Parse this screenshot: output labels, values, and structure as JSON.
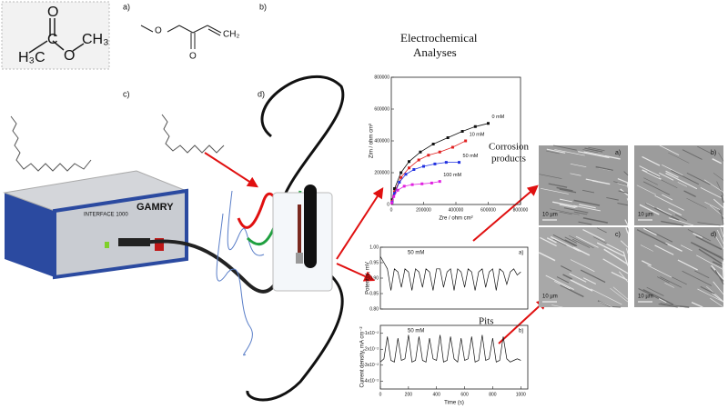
{
  "panel_labels": [
    "a)",
    "b)",
    "c)",
    "d)"
  ],
  "molecules": {
    "acetate": {
      "h3c": "H₃C",
      "c": "C",
      "o_top": "O",
      "o_mid": "O",
      "ch3": "CH₃"
    },
    "acrylate": {
      "o_left": "O",
      "o_bottom": "O",
      "ch2": "CH₂"
    }
  },
  "title": [
    "Electrochemical",
    "Analyses"
  ],
  "instrument": {
    "model": "INTERFACE 1000",
    "brand": "GAMRY"
  },
  "nyquist": {
    "type": "line",
    "xlabel": "Zre / ohm cm²",
    "ylabel": "Zim / ohm cm²",
    "xlim": [
      0,
      800000
    ],
    "xticks": [
      0,
      200000,
      400000,
      600000,
      800000
    ],
    "ylim": [
      0,
      800000
    ],
    "yticks": [
      0,
      200000,
      400000,
      600000,
      800000
    ],
    "series": [
      {
        "name": "0 mM",
        "color": "#111111",
        "x": [
          5000,
          20000,
          60000,
          110000,
          180000,
          260000,
          350000,
          440000,
          520000,
          600000
        ],
        "values": [
          30000,
          100000,
          200000,
          270000,
          330000,
          380000,
          420000,
          460000,
          490000,
          510000
        ]
      },
      {
        "name": "10 mM",
        "color": "#e02020",
        "x": [
          5000,
          20000,
          60000,
          110000,
          170000,
          230000,
          300000,
          380000,
          460000
        ],
        "values": [
          20000,
          80000,
          170000,
          230000,
          280000,
          310000,
          330000,
          360000,
          400000
        ]
      },
      {
        "name": "50 mM",
        "color": "#2030e0",
        "x": [
          5000,
          20000,
          50000,
          90000,
          140000,
          200000,
          270000,
          340000,
          420000
        ],
        "values": [
          15000,
          70000,
          140000,
          190000,
          220000,
          240000,
          255000,
          265000,
          265000
        ]
      },
      {
        "name": "100 mM",
        "color": "#e020e0",
        "x": [
          3000,
          15000,
          40000,
          80000,
          130000,
          190000,
          250000,
          300000
        ],
        "values": [
          10000,
          50000,
          90000,
          115000,
          125000,
          130000,
          135000,
          145000
        ]
      }
    ]
  },
  "potential_noise": {
    "type": "line",
    "ylabel": "Potential, mV",
    "panel": "a)",
    "label": "50 mM",
    "xlim": [
      0,
      1050
    ],
    "ylim": [
      0.8,
      1.0
    ],
    "yticks": [
      {
        "value": 0.8,
        "label": "0.80"
      },
      0.85,
      {
        "value": 0.9,
        "label": "0.90"
      },
      0.95,
      {
        "value": 1.0,
        "label": "1.00"
      }
    ],
    "x": [
      0,
      25,
      50,
      75,
      100,
      125,
      150,
      175,
      200,
      225,
      250,
      275,
      300,
      325,
      350,
      375,
      400,
      425,
      450,
      475,
      500,
      525,
      550,
      575,
      600,
      625,
      650,
      675,
      700,
      725,
      750,
      775,
      800,
      825,
      850,
      875,
      900,
      925,
      950,
      975,
      1000
    ],
    "values": [
      0.97,
      0.95,
      0.93,
      0.86,
      0.93,
      0.92,
      0.87,
      0.93,
      0.92,
      0.86,
      0.93,
      0.92,
      0.87,
      0.93,
      0.92,
      0.86,
      0.93,
      0.93,
      0.87,
      0.92,
      0.93,
      0.86,
      0.93,
      0.92,
      0.87,
      0.93,
      0.92,
      0.86,
      0.92,
      0.93,
      0.87,
      0.92,
      0.93,
      0.86,
      0.93,
      0.92,
      0.88,
      0.92,
      0.93,
      0.91,
      0.92
    ]
  },
  "current_noise": {
    "type": "line",
    "xlabel": "Time (s)",
    "ylabel": "Current density, mA cm⁻²",
    "panel": "b)",
    "label": "50 mM",
    "xlim": [
      0,
      1050
    ],
    "xticks": [
      0,
      200,
      400,
      600,
      800,
      1000
    ],
    "ylim": [
      -0.045,
      -0.005
    ],
    "yticks": [
      {
        "value": -0.04,
        "label": "-4x10⁻²"
      },
      {
        "value": -0.03,
        "label": "-3x10⁻²"
      },
      {
        "value": -0.02,
        "label": "-2x10⁻²"
      },
      {
        "value": -0.01,
        "label": "-1x10⁻²"
      }
    ],
    "x": [
      0,
      25,
      50,
      75,
      100,
      125,
      150,
      175,
      200,
      225,
      250,
      275,
      300,
      325,
      350,
      375,
      400,
      425,
      450,
      475,
      500,
      525,
      550,
      575,
      600,
      625,
      650,
      675,
      700,
      725,
      750,
      775,
      800,
      825,
      850,
      875,
      900,
      925,
      950,
      975,
      1000
    ],
    "values": [
      -0.028,
      -0.026,
      -0.012,
      -0.027,
      -0.028,
      -0.013,
      -0.027,
      -0.026,
      -0.011,
      -0.028,
      -0.027,
      -0.012,
      -0.027,
      -0.028,
      -0.013,
      -0.026,
      -0.027,
      -0.011,
      -0.028,
      -0.027,
      -0.012,
      -0.026,
      -0.028,
      -0.013,
      -0.027,
      -0.026,
      -0.012,
      -0.028,
      -0.027,
      -0.011,
      -0.027,
      -0.026,
      -0.013,
      -0.028,
      -0.027,
      -0.012,
      -0.026,
      -0.028,
      -0.027,
      -0.026,
      -0.027
    ]
  },
  "annotations": {
    "corrosion": [
      "Corrosion",
      "products"
    ],
    "pits": "Pits"
  },
  "sem": {
    "labels": [
      "a)",
      "b)",
      "c)",
      "d)"
    ],
    "scale": [
      "10 µm",
      "10 µm",
      "10 µm",
      "10 µm"
    ]
  }
}
